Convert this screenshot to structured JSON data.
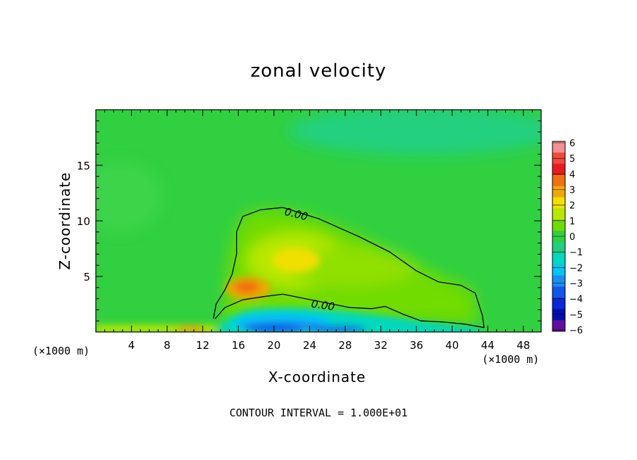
{
  "chart_data": {
    "type": "heatmap",
    "title": "zonal velocity",
    "xlabel": "X-coordinate",
    "ylabel": "Z-coordinate",
    "x_unit_label": "(×1000 m)",
    "x_ticks": [
      "4",
      "8",
      "12",
      "16",
      "20",
      "24",
      "28",
      "32",
      "36",
      "40",
      "44",
      "48"
    ],
    "x_tick_values": [
      4,
      8,
      12,
      16,
      20,
      24,
      28,
      32,
      36,
      40,
      44,
      48
    ],
    "y_ticks": [
      "5",
      "10",
      "15"
    ],
    "y_tick_values": [
      5,
      10,
      15
    ],
    "xlim": [
      0,
      50
    ],
    "ylim": [
      0,
      20
    ],
    "colorbar": {
      "labels": [
        "6",
        "5",
        "4",
        "3",
        "2",
        "1",
        "0",
        "−1",
        "−2",
        "−3",
        "−4",
        "−5",
        "−6"
      ],
      "colors": [
        "#f49090",
        "#f04a40",
        "#e81c1c",
        "#f07010",
        "#f0a800",
        "#f0e000",
        "#b8e800",
        "#70dc00",
        "#30d040",
        "#20d080",
        "#00d8c0",
        "#00c8f0",
        "#1890f0",
        "#1058e8",
        "#0828d8",
        "#0010b0",
        "#6010a0"
      ],
      "value_range": [
        -6,
        6
      ]
    },
    "contours": [
      {
        "label": "0.00",
        "level": 0,
        "points": [
          [
            13.2,
            1.2
          ],
          [
            13.5,
            2.5
          ],
          [
            14.5,
            3.8
          ],
          [
            15.3,
            5.2
          ],
          [
            15.8,
            7.0
          ],
          [
            15.8,
            9.0
          ],
          [
            16.5,
            10.4
          ],
          [
            18.5,
            11.0
          ],
          [
            21,
            11.2
          ],
          [
            25,
            10.2
          ],
          [
            29.5,
            8.6
          ],
          [
            33,
            7.2
          ],
          [
            36,
            5.5
          ],
          [
            38.5,
            4.5
          ],
          [
            41,
            4.2
          ],
          [
            42.6,
            3.5
          ],
          [
            43.4,
            1.5
          ],
          [
            43.6,
            0.4
          ]
        ]
      },
      {
        "label": "0.00",
        "level": 0,
        "points": [
          [
            13.4,
            1.2
          ],
          [
            14.5,
            2.2
          ],
          [
            16.5,
            2.9
          ],
          [
            19,
            3.2
          ],
          [
            21,
            3.4
          ],
          [
            23.5,
            3.0
          ],
          [
            26,
            2.6
          ],
          [
            28.5,
            2.2
          ],
          [
            31,
            2.1
          ],
          [
            32.5,
            2.3
          ],
          [
            34.5,
            1.6
          ],
          [
            36.5,
            1.0
          ],
          [
            39,
            0.9
          ],
          [
            41.5,
            0.7
          ],
          [
            43.6,
            0.4
          ]
        ]
      }
    ],
    "features": [
      {
        "kind": "max",
        "x": 17.2,
        "z": 4.3,
        "value": 3.2
      },
      {
        "kind": "local_max",
        "x": 23,
        "z": 6.5,
        "value": 1.8
      },
      {
        "kind": "min",
        "x": 22,
        "z": 0.8,
        "value": -5
      },
      {
        "kind": "weak_negative_band",
        "x": 36,
        "z": 18.5,
        "value": -1.3
      }
    ],
    "footer": "CONTOUR INTERVAL = 1.000E+01"
  }
}
